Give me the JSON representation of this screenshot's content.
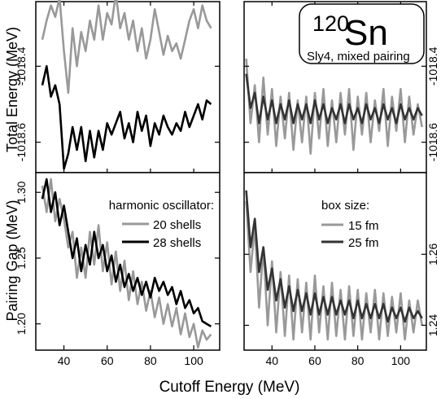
{
  "chart_data": {
    "type": "line",
    "x_label": "Cutoff Energy (MeV)",
    "x_ticks": [
      40,
      60,
      80,
      100
    ],
    "x_range": [
      27,
      112
    ],
    "rows": [
      {
        "y_label": "Total Energy (MeV)",
        "y_ticks": [
          {
            "value": -1018.4,
            "label": "-1018.4"
          },
          {
            "value": -1018.6,
            "label": "-1018.6"
          }
        ],
        "y_range": [
          -1018.68,
          -1018.23
        ]
      },
      {
        "y_label": "Pairing Gap (MeV)",
        "y_ticks_left": [
          {
            "value": 1.2,
            "label": "1.20"
          },
          {
            "value": 1.25,
            "label": "1.25"
          },
          {
            "value": 1.3,
            "label": "1.30"
          }
        ],
        "y_ticks_right": [
          {
            "value": 1.24,
            "label": "1.24"
          },
          {
            "value": 1.26,
            "label": "1.26"
          }
        ],
        "y_range_left": [
          1.18,
          1.315
        ],
        "y_range_right": [
          1.233,
          1.283
        ]
      }
    ],
    "panels": [
      {
        "id": "energy-ho",
        "series": [
          {
            "name": "20 shells",
            "color": "#999999",
            "x": [
              30,
              32,
              34,
              36,
              38,
              40,
              42,
              44,
              46,
              48,
              50,
              52,
              54,
              56,
              58,
              60,
              62,
              64,
              66,
              68,
              70,
              72,
              74,
              76,
              78,
              80,
              82,
              84,
              86,
              88,
              90,
              92,
              94,
              96,
              98,
              100,
              102,
              104,
              106,
              108
            ],
            "y": [
              -1018.33,
              -1018.28,
              -1018.24,
              -1018.27,
              -1018.22,
              -1018.36,
              -1018.47,
              -1018.3,
              -1018.4,
              -1018.31,
              -1018.36,
              -1018.28,
              -1018.33,
              -1018.24,
              -1018.33,
              -1018.26,
              -1018.29,
              -1018.21,
              -1018.3,
              -1018.26,
              -1018.33,
              -1018.28,
              -1018.36,
              -1018.3,
              -1018.38,
              -1018.33,
              -1018.25,
              -1018.31,
              -1018.37,
              -1018.32,
              -1018.36,
              -1018.34,
              -1018.38,
              -1018.33,
              -1018.28,
              -1018.25,
              -1018.3,
              -1018.24,
              -1018.28,
              -1018.3
            ]
          },
          {
            "name": "28 shells",
            "color": "#000000",
            "x": [
              30,
              32,
              34,
              36,
              38,
              40,
              42,
              44,
              46,
              48,
              50,
              52,
              54,
              56,
              58,
              60,
              62,
              64,
              66,
              68,
              70,
              72,
              74,
              76,
              78,
              80,
              82,
              84,
              86,
              88,
              90,
              92,
              94,
              96,
              98,
              100,
              102,
              104,
              106,
              108
            ],
            "y": [
              -1018.45,
              -1018.4,
              -1018.48,
              -1018.45,
              -1018.5,
              -1018.67,
              -1018.63,
              -1018.56,
              -1018.62,
              -1018.56,
              -1018.65,
              -1018.57,
              -1018.64,
              -1018.57,
              -1018.62,
              -1018.55,
              -1018.58,
              -1018.55,
              -1018.52,
              -1018.59,
              -1018.55,
              -1018.6,
              -1018.52,
              -1018.57,
              -1018.53,
              -1018.61,
              -1018.55,
              -1018.58,
              -1018.53,
              -1018.56,
              -1018.58,
              -1018.55,
              -1018.57,
              -1018.52,
              -1018.56,
              -1018.53,
              -1018.5,
              -1018.54,
              -1018.49,
              -1018.5
            ]
          }
        ]
      },
      {
        "id": "energy-box",
        "series": [
          {
            "name": "15 fm",
            "color": "#999999",
            "x": [
              28,
              30,
              32,
              34,
              36,
              38,
              40,
              42,
              44,
              46,
              48,
              50,
              52,
              54,
              56,
              58,
              60,
              62,
              64,
              66,
              68,
              70,
              72,
              74,
              76,
              78,
              80,
              82,
              84,
              86,
              88,
              90,
              92,
              94,
              96,
              98,
              100,
              102,
              104,
              106,
              108,
              110
            ],
            "y": [
              -1018.38,
              -1018.55,
              -1018.45,
              -1018.6,
              -1018.43,
              -1018.58,
              -1018.46,
              -1018.61,
              -1018.48,
              -1018.59,
              -1018.47,
              -1018.62,
              -1018.49,
              -1018.6,
              -1018.48,
              -1018.63,
              -1018.47,
              -1018.59,
              -1018.46,
              -1018.61,
              -1018.49,
              -1018.6,
              -1018.47,
              -1018.58,
              -1018.46,
              -1018.62,
              -1018.48,
              -1018.58,
              -1018.47,
              -1018.6,
              -1018.49,
              -1018.57,
              -1018.46,
              -1018.61,
              -1018.48,
              -1018.57,
              -1018.46,
              -1018.6,
              -1018.48,
              -1018.58,
              -1018.5,
              -1018.56
            ]
          },
          {
            "name": "25 fm",
            "color": "#333333",
            "x": [
              28,
              30,
              32,
              34,
              36,
              38,
              40,
              42,
              44,
              46,
              48,
              50,
              52,
              54,
              56,
              58,
              60,
              62,
              64,
              66,
              68,
              70,
              72,
              74,
              76,
              78,
              80,
              82,
              84,
              86,
              88,
              90,
              92,
              94,
              96,
              98,
              100,
              102,
              104,
              106,
              108,
              110
            ],
            "y": [
              -1018.42,
              -1018.51,
              -1018.47,
              -1018.55,
              -1018.48,
              -1018.54,
              -1018.49,
              -1018.55,
              -1018.5,
              -1018.54,
              -1018.49,
              -1018.55,
              -1018.5,
              -1018.54,
              -1018.5,
              -1018.55,
              -1018.49,
              -1018.54,
              -1018.5,
              -1018.55,
              -1018.51,
              -1018.54,
              -1018.5,
              -1018.55,
              -1018.5,
              -1018.54,
              -1018.51,
              -1018.55,
              -1018.5,
              -1018.54,
              -1018.51,
              -1018.55,
              -1018.5,
              -1018.54,
              -1018.51,
              -1018.55,
              -1018.5,
              -1018.54,
              -1018.51,
              -1018.54,
              -1018.51,
              -1018.53
            ]
          }
        ]
      },
      {
        "id": "gap-ho",
        "series": [
          {
            "name": "20 shells",
            "color": "#999999",
            "x": [
              30,
              32,
              34,
              36,
              38,
              40,
              42,
              44,
              46,
              48,
              50,
              52,
              54,
              56,
              58,
              60,
              62,
              64,
              66,
              68,
              70,
              72,
              74,
              76,
              78,
              80,
              82,
              84,
              86,
              88,
              90,
              92,
              94,
              96,
              98,
              100,
              102,
              104,
              106,
              108
            ],
            "y": [
              1.305,
              1.285,
              1.31,
              1.278,
              1.295,
              1.28,
              1.258,
              1.27,
              1.235,
              1.258,
              1.235,
              1.27,
              1.245,
              1.275,
              1.24,
              1.262,
              1.23,
              1.255,
              1.225,
              1.248,
              1.218,
              1.24,
              1.215,
              1.232,
              1.21,
              1.225,
              1.205,
              1.22,
              1.2,
              1.215,
              1.198,
              1.212,
              1.192,
              1.208,
              1.19,
              1.2,
              1.182,
              1.195,
              1.188,
              1.192
            ]
          },
          {
            "name": "28 shells",
            "color": "#000000",
            "x": [
              30,
              32,
              34,
              36,
              38,
              40,
              42,
              44,
              46,
              48,
              50,
              52,
              54,
              56,
              58,
              60,
              62,
              64,
              66,
              68,
              70,
              72,
              74,
              76,
              78,
              80,
              82,
              84,
              86,
              88,
              90,
              92,
              94,
              96,
              98,
              100,
              102,
              104,
              106,
              108
            ],
            "y": [
              1.295,
              1.31,
              1.285,
              1.3,
              1.275,
              1.29,
              1.27,
              1.25,
              1.265,
              1.24,
              1.26,
              1.245,
              1.27,
              1.25,
              1.26,
              1.24,
              1.252,
              1.232,
              1.245,
              1.228,
              1.238,
              1.225,
              1.235,
              1.222,
              1.232,
              1.22,
              1.235,
              1.225,
              1.232,
              1.222,
              1.228,
              1.215,
              1.225,
              1.212,
              1.218,
              1.208,
              1.212,
              1.202,
              1.2,
              1.198
            ]
          }
        ]
      },
      {
        "id": "gap-box",
        "series": [
          {
            "name": "15 fm",
            "color": "#999999",
            "x": [
              28,
              30,
              32,
              34,
              36,
              38,
              40,
              42,
              44,
              46,
              48,
              50,
              52,
              54,
              56,
              58,
              60,
              62,
              64,
              66,
              68,
              70,
              72,
              74,
              76,
              78,
              80,
              82,
              84,
              86,
              88,
              90,
              92,
              94,
              96,
              98,
              100,
              102,
              104,
              106,
              108,
              110
            ],
            "y": [
              1.275,
              1.255,
              1.268,
              1.245,
              1.262,
              1.24,
              1.258,
              1.238,
              1.255,
              1.237,
              1.254,
              1.236,
              1.253,
              1.238,
              1.252,
              1.236,
              1.254,
              1.238,
              1.251,
              1.236,
              1.252,
              1.237,
              1.25,
              1.236,
              1.251,
              1.237,
              1.25,
              1.236,
              1.249,
              1.238,
              1.25,
              1.236,
              1.249,
              1.237,
              1.248,
              1.238,
              1.249,
              1.236,
              1.247,
              1.238,
              1.247,
              1.24
            ]
          },
          {
            "name": "25 fm",
            "color": "#333333",
            "x": [
              28,
              30,
              32,
              34,
              36,
              38,
              40,
              42,
              44,
              46,
              48,
              50,
              52,
              54,
              56,
              58,
              60,
              62,
              64,
              66,
              68,
              70,
              72,
              74,
              76,
              78,
              80,
              82,
              84,
              86,
              88,
              90,
              92,
              94,
              96,
              98,
              100,
              102,
              104,
              106,
              108,
              110
            ],
            "y": [
              1.278,
              1.262,
              1.27,
              1.255,
              1.262,
              1.25,
              1.256,
              1.247,
              1.253,
              1.245,
              1.251,
              1.244,
              1.25,
              1.244,
              1.249,
              1.243,
              1.249,
              1.243,
              1.248,
              1.243,
              1.248,
              1.243,
              1.247,
              1.243,
              1.247,
              1.242,
              1.247,
              1.242,
              1.246,
              1.242,
              1.246,
              1.242,
              1.246,
              1.241,
              1.245,
              1.242,
              1.245,
              1.241,
              1.245,
              1.242,
              1.244,
              1.242
            ]
          }
        ]
      }
    ],
    "legends": [
      {
        "panel": "gap-ho",
        "title": "harmonic oscillator:",
        "entries": [
          {
            "name": "20 shells",
            "color": "#999999"
          },
          {
            "name": "28 shells",
            "color": "#000000"
          }
        ]
      },
      {
        "panel": "gap-box",
        "title": "box size:",
        "entries": [
          {
            "name": "15 fm",
            "color": "#999999"
          },
          {
            "name": "25 fm",
            "color": "#333333"
          }
        ]
      }
    ],
    "annotation": {
      "mass_number": "120",
      "symbol": "Sn",
      "subtitle": "Sly4, mixed pairing"
    }
  }
}
